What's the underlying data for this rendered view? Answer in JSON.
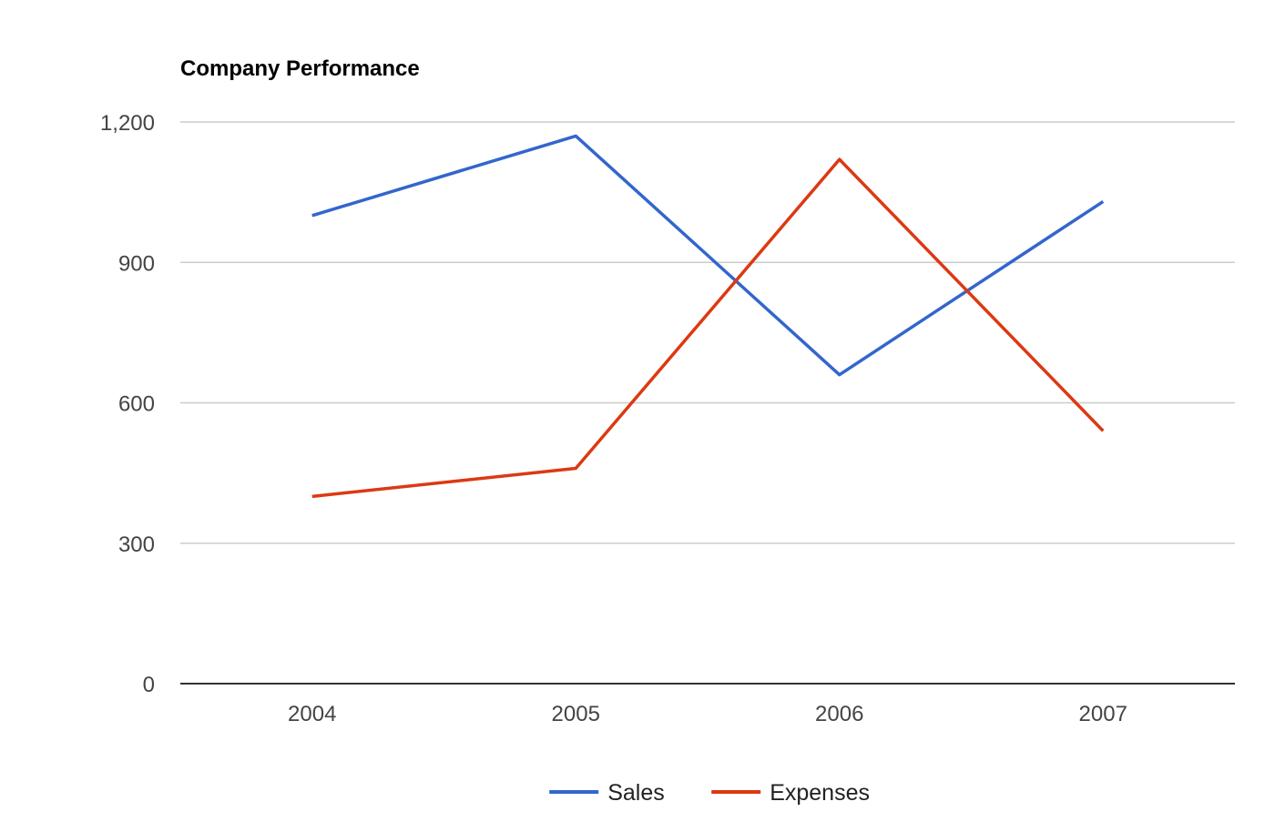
{
  "chart_data": {
    "type": "line",
    "title": "Company Performance",
    "xlabel": "",
    "ylabel": "",
    "categories": [
      "2004",
      "2005",
      "2006",
      "2007"
    ],
    "series": [
      {
        "name": "Sales",
        "values": [
          1000,
          1170,
          660,
          1030
        ],
        "color": "#3366cc"
      },
      {
        "name": "Expenses",
        "values": [
          400,
          460,
          1120,
          540
        ],
        "color": "#dc3912"
      }
    ],
    "ylim": [
      0,
      1200
    ],
    "yticks": [
      0,
      300,
      600,
      900,
      1200
    ],
    "ytick_labels": [
      "0",
      "300",
      "600",
      "900",
      "1,200"
    ],
    "grid": true,
    "legend_position": "bottom"
  }
}
